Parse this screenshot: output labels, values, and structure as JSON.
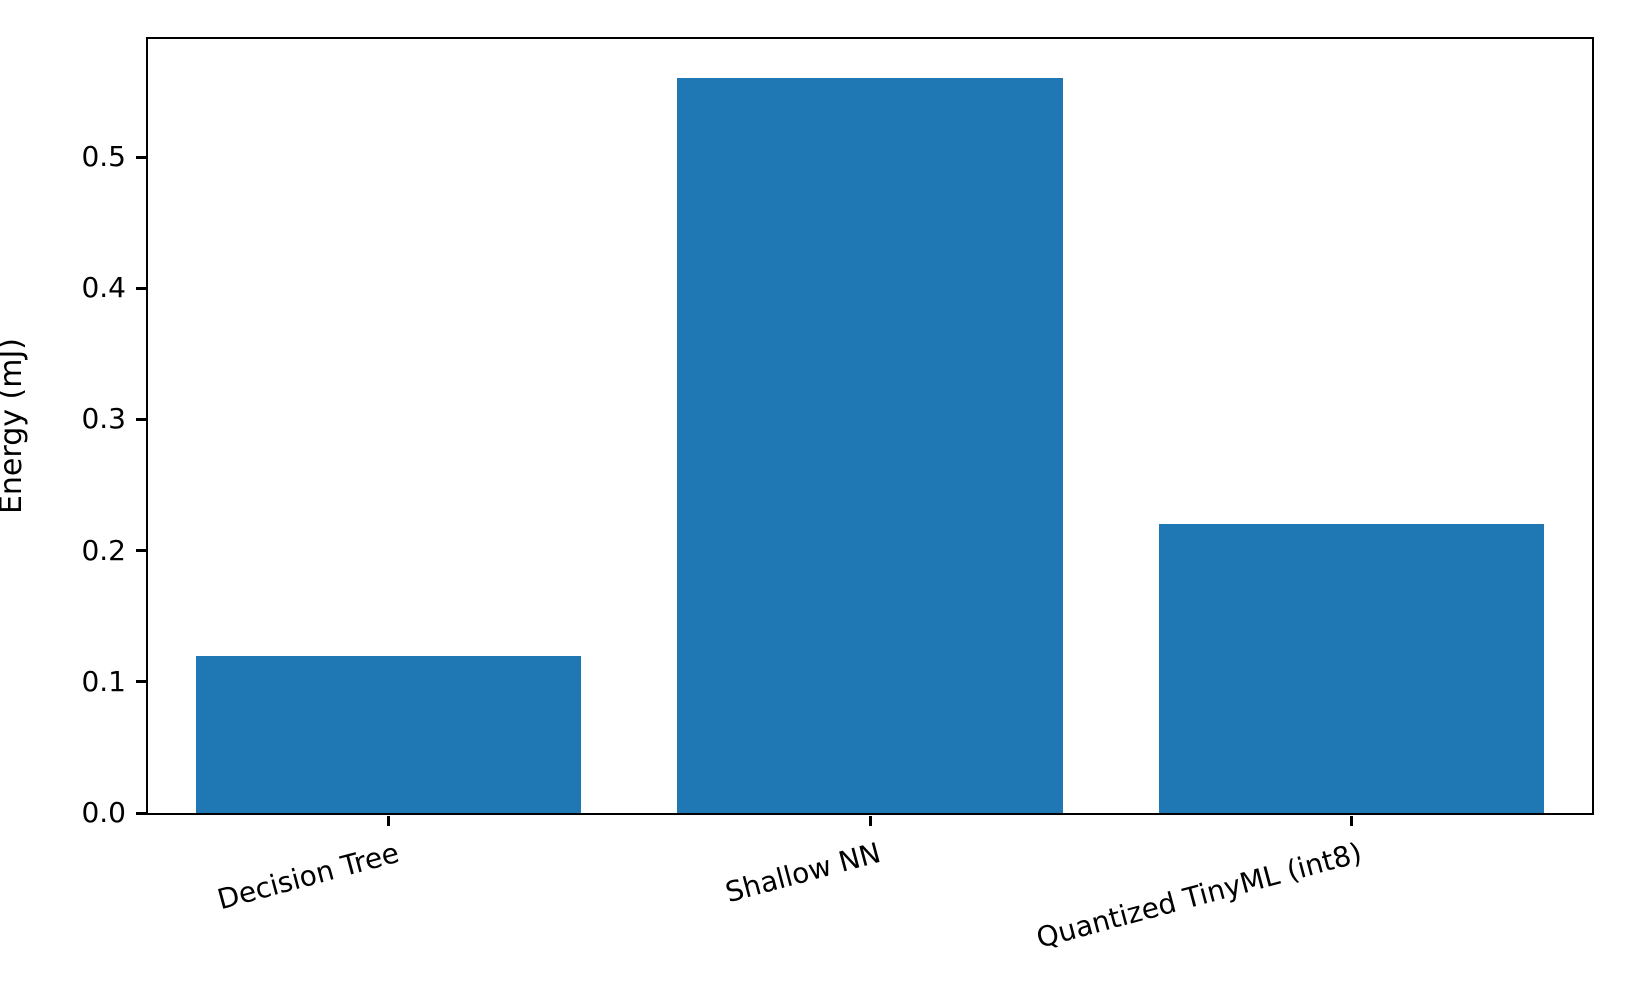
{
  "chart_data": {
    "type": "bar",
    "categories": [
      "Decision Tree",
      "Shallow NN",
      "Quantized TinyML (int8)"
    ],
    "values": [
      0.12,
      0.56,
      0.22
    ],
    "title": "",
    "xlabel": "",
    "ylabel": "Energy (mJ)",
    "ylim": [
      0,
      0.59
    ],
    "yticks": [
      0.0,
      0.1,
      0.2,
      0.3,
      0.4,
      0.5
    ],
    "ytick_labels": [
      "0.0",
      "0.1",
      "0.2",
      "0.3",
      "0.4",
      "0.5"
    ],
    "bar_color": "#1f77b4",
    "bar_width_fraction": 0.8,
    "xtick_rotation_deg": 15,
    "grid": false,
    "legend_position": "none"
  }
}
